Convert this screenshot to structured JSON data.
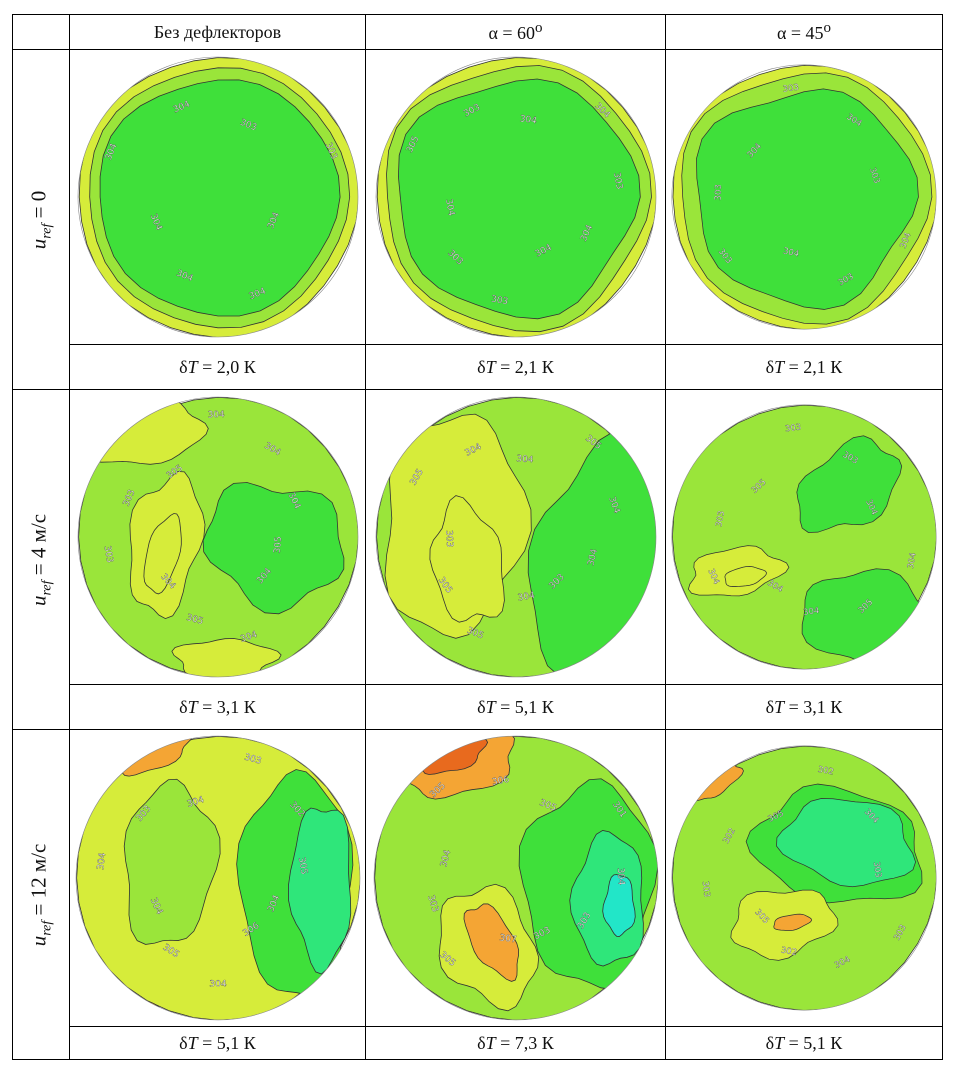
{
  "caption": "",
  "header": {
    "col1": "Без дефлекторов",
    "col2_prefix": "α = 60",
    "col2_sup": "o",
    "col3_prefix": "α = 45",
    "col3_sup": "o"
  },
  "rows": [
    {
      "label_var": "u",
      "label_sub": "ref",
      "label_rest": "= 0",
      "dt": [
        "= 2,0 К",
        "= 2,1 К",
        "= 2,1 К"
      ],
      "contours": [
        [
          "304",
          "304",
          "304",
          "304",
          "304",
          "304",
          "303",
          "303"
        ],
        [
          "304",
          "303",
          "303",
          "304",
          "305",
          "303",
          "304",
          "304",
          "303",
          "304"
        ],
        [
          "304",
          "303",
          "303",
          "304",
          "303",
          "304",
          "303",
          "304",
          "303"
        ]
      ]
    },
    {
      "label_var": "u",
      "label_sub": "ref",
      "label_rest": "= 4 м/с",
      "dt": [
        "= 3,1 К",
        "= 5,1 К",
        "= 3,1 К"
      ],
      "contours": [
        [
          "304",
          "304",
          "305",
          "304",
          "303",
          "303",
          "305",
          "304",
          "304",
          "304",
          "305"
        ],
        [
          "304",
          "305",
          "305",
          "303",
          "305",
          "304",
          "304",
          "305",
          "304",
          "304",
          "303"
        ],
        [
          "304",
          "304",
          "303",
          "305",
          "303",
          "303",
          "304",
          "304",
          "305",
          "304"
        ]
      ]
    },
    {
      "label_var": "u",
      "label_sub": "ref",
      "label_rest": "= 12 м/с",
      "dt": [
        "= 5,1 К",
        "= 7,3 К",
        "= 5,1 К"
      ],
      "contours": [
        [
          "306",
          "304",
          "305",
          "304",
          "304",
          "303",
          "304",
          "303",
          "302",
          "305",
          "304"
        ],
        [
          "307",
          "305",
          "303",
          "304",
          "305",
          "306",
          "305",
          "301",
          "304",
          "303",
          "303"
        ],
        [
          "305",
          "303",
          "302",
          "305",
          "302",
          "304",
          "303",
          "303",
          "304",
          "302"
        ]
      ]
    }
  ],
  "dt_symbol": "δ",
  "dt_var": "T"
}
